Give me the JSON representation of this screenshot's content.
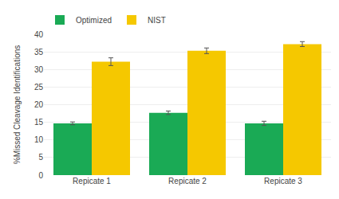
{
  "chart_data": {
    "type": "bar",
    "categories": [
      "Repicate 1",
      "Repicate 2",
      "Repicate 3"
    ],
    "series": [
      {
        "name": "Optimized",
        "color": "#1aaa55",
        "values": [
          14.7,
          17.7,
          14.7
        ],
        "errors": [
          0.4,
          0.5,
          0.6
        ]
      },
      {
        "name": "NIST",
        "color": "#f5c800",
        "values": [
          32.2,
          35.3,
          37.2
        ],
        "errors": [
          1.1,
          0.8,
          0.7
        ]
      }
    ],
    "ylabel": "%Missed Cleavage Identifications",
    "ylim": [
      0,
      40
    ],
    "yticks": [
      0,
      5,
      10,
      15,
      20,
      25,
      30,
      35,
      40
    ],
    "grid": true,
    "legend": "upper left"
  }
}
